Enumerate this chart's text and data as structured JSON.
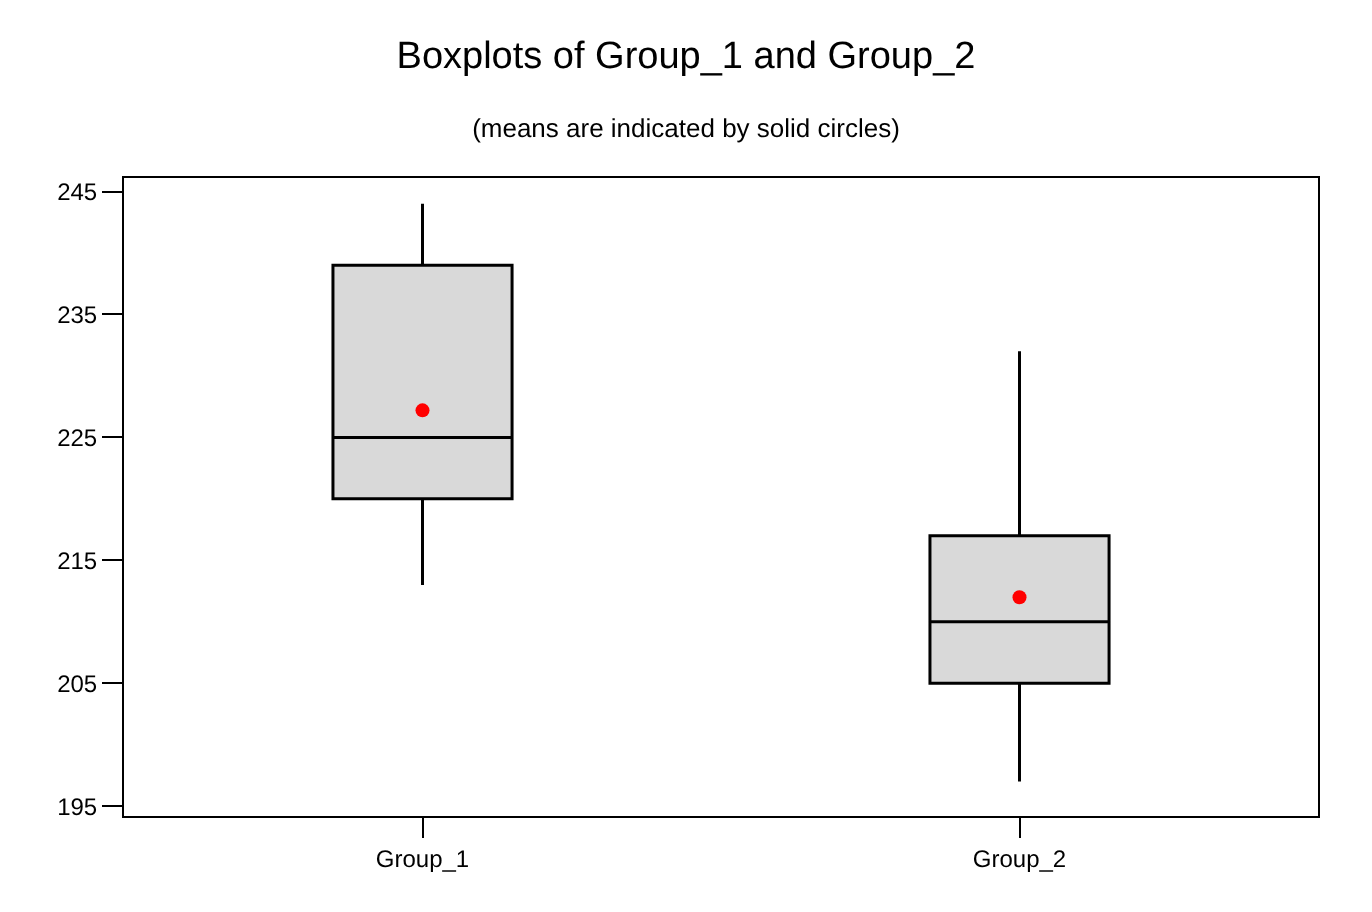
{
  "chart_data": {
    "type": "box",
    "title": "Boxplots of Group_1 and Group_2",
    "subtitle": "(means are indicated by solid circles)",
    "categories": [
      "Group_1",
      "Group_2"
    ],
    "boxes": [
      {
        "low": 213,
        "q1": 220,
        "median": 225,
        "q3": 239,
        "high": 244
      },
      {
        "low": 197,
        "q1": 205,
        "median": 210,
        "q3": 217,
        "high": 232
      }
    ],
    "color": "#d9d9d9",
    "series": [
      {
        "type": "scatter",
        "color": "#ff0000",
        "marker": "circle",
        "x": [
          "Group_1",
          "Group_2"
        ],
        "values": [
          227.2,
          212
        ]
      }
    ],
    "ylim": [
      194.2,
      246.1
    ],
    "yticks": [
      195,
      205,
      215,
      225,
      235,
      245
    ]
  }
}
